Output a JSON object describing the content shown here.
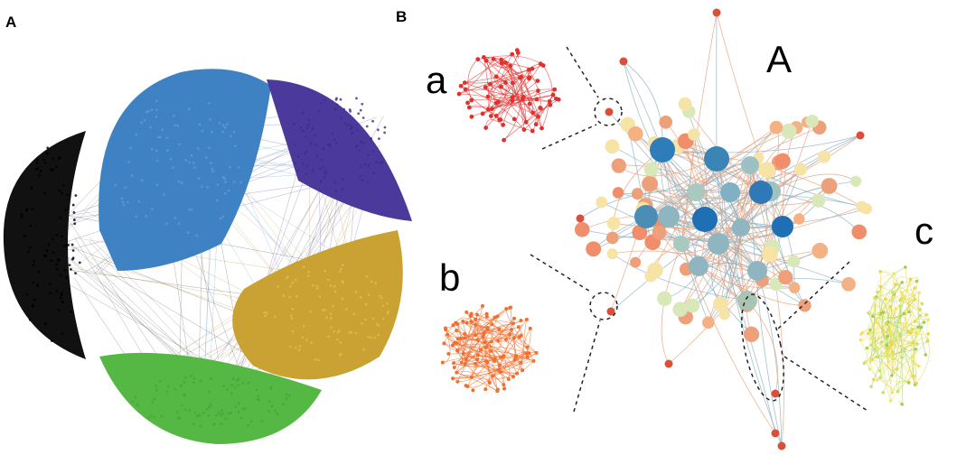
{
  "panels": [
    {
      "label": "A"
    },
    {
      "label": "B",
      "network_label": "A",
      "insets": [
        {
          "label": "a"
        },
        {
          "label": "b"
        },
        {
          "label": "c"
        }
      ]
    }
  ]
}
